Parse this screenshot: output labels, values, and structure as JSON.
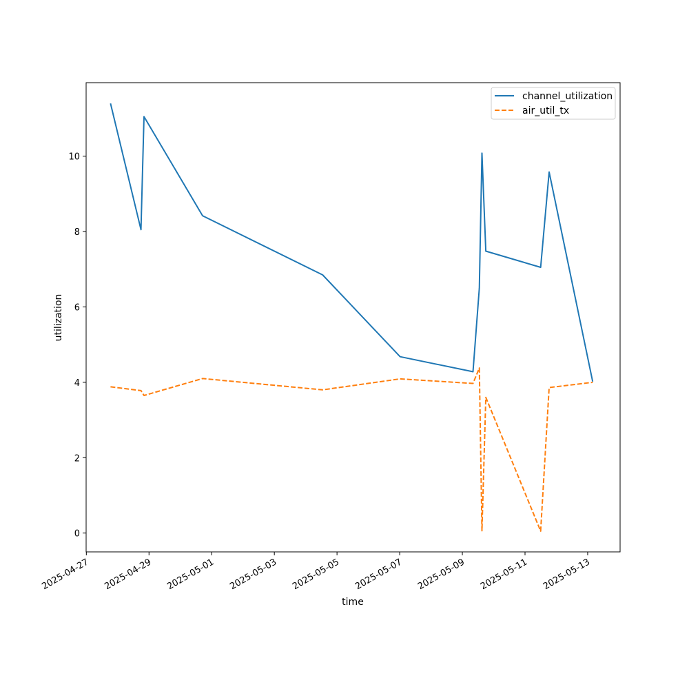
{
  "chart_data": {
    "type": "line",
    "title": "",
    "xlabel": "time",
    "ylabel": "utilization",
    "x_ticks": [
      "2025-04-27",
      "2025-04-29",
      "2025-05-01",
      "2025-05-03",
      "2025-05-05",
      "2025-05-07",
      "2025-05-09",
      "2025-05-11",
      "2025-05-13"
    ],
    "y_ticks": [
      "0",
      "2",
      "4",
      "6",
      "8",
      "10"
    ],
    "xlim": [
      "2025-04-26T23:50",
      "2025-05-14T00:50"
    ],
    "ylim": [
      -0.5,
      11.95
    ],
    "grid": false,
    "legend_position": "top-right",
    "series": [
      {
        "name": "channel_utilization",
        "color": "#1f77b4",
        "dash": "solid",
        "points": [
          {
            "x": "2025-04-27T18:30",
            "y": 11.4
          },
          {
            "x": "2025-04-28T17:50",
            "y": 8.05
          },
          {
            "x": "2025-04-28T20:10",
            "y": 11.05
          },
          {
            "x": "2025-04-30T17:00",
            "y": 8.42
          },
          {
            "x": "2025-05-04T13:00",
            "y": 6.85
          },
          {
            "x": "2025-05-07T00:20",
            "y": 4.68
          },
          {
            "x": "2025-05-09T08:10",
            "y": 4.28
          },
          {
            "x": "2025-05-09T13:00",
            "y": 6.5
          },
          {
            "x": "2025-05-09T15:00",
            "y": 10.08
          },
          {
            "x": "2025-05-09T18:00",
            "y": 7.48
          },
          {
            "x": "2025-05-11T12:00",
            "y": 7.05
          },
          {
            "x": "2025-05-11T18:30",
            "y": 9.58
          },
          {
            "x": "2025-05-13T03:50",
            "y": 4.02
          }
        ]
      },
      {
        "name": "air_util_tx",
        "color": "#ff7f0e",
        "dash": "dashed",
        "points": [
          {
            "x": "2025-04-27T18:30",
            "y": 3.88
          },
          {
            "x": "2025-04-28T17:50",
            "y": 3.78
          },
          {
            "x": "2025-04-28T20:10",
            "y": 3.65
          },
          {
            "x": "2025-04-30T17:00",
            "y": 4.1
          },
          {
            "x": "2025-05-04T13:00",
            "y": 3.8
          },
          {
            "x": "2025-05-07T00:20",
            "y": 4.09
          },
          {
            "x": "2025-05-09T08:10",
            "y": 3.97
          },
          {
            "x": "2025-05-09T13:00",
            "y": 4.38
          },
          {
            "x": "2025-05-09T15:00",
            "y": 0.06
          },
          {
            "x": "2025-05-09T18:00",
            "y": 3.6
          },
          {
            "x": "2025-05-11T12:00",
            "y": 0.05
          },
          {
            "x": "2025-05-11T18:30",
            "y": 3.86
          },
          {
            "x": "2025-05-13T03:50",
            "y": 4.0
          }
        ]
      }
    ]
  }
}
